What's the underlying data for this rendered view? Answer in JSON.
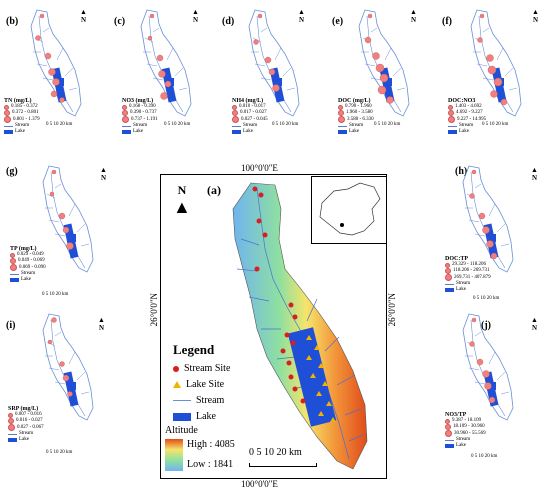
{
  "panels": [
    {
      "id": "b",
      "label": "(b)",
      "title": "TN (mg/L)",
      "classes": [
        "0.185 - 0.372",
        "0.372 - 0.801",
        "0.801 - 1.379"
      ]
    },
    {
      "id": "c",
      "label": "(c)",
      "title": "NO3 (mg/L)",
      "classes": [
        "0.168 - 0.390",
        "0.390 - 0.737",
        "0.737 - 1.191"
      ]
    },
    {
      "id": "d",
      "label": "(d)",
      "title": "NH4 (mg/L)",
      "classes": [
        "0.010 - 0.017",
        "0.017 - 0.027",
        "0.027 - 0.045"
      ]
    },
    {
      "id": "e",
      "label": "(e)",
      "title": "DOC (mg/L)",
      "classes": [
        "0.790 - 1.960",
        "1.960 - 3.580",
        "3.580 - 6.330"
      ]
    },
    {
      "id": "f",
      "label": "(f)",
      "title": "DOC:NO3",
      "classes": [
        "1.403 - 4.692",
        "4.692 - 9.227",
        "9.227 - 14.995"
      ]
    },
    {
      "id": "g",
      "label": "(g)",
      "title": "TP (mg/L)",
      "classes": [
        "0.029 - 0.049",
        "0.049 - 0.069",
        "0.069 - 0.090"
      ]
    },
    {
      "id": "h",
      "label": "(h)",
      "title": "DOC:TP",
      "classes": [
        "29.329 - 118.206",
        "118.206 - 269.731",
        "269.731 - 407.879"
      ]
    },
    {
      "id": "i",
      "label": "(i)",
      "title": "SRP (mg/L)",
      "classes": [
        "0.007 - 0.016",
        "0.016 - 0.027",
        "0.027 - 0.067"
      ]
    },
    {
      "id": "j",
      "label": "(j)",
      "title": "NO3/TP",
      "classes": [
        "9.387 - 18.109",
        "18.109 - 30.960",
        "30.960 - 55.569"
      ]
    }
  ],
  "small_legend": {
    "stream": "Stream",
    "lake": "Lake",
    "scale": "0  5 10      20 km",
    "north": "N"
  },
  "main_map": {
    "label": "(a)",
    "coord_top": "100°0'0\"E",
    "coord_bottom": "100°0'0\"E",
    "coord_left": "26°0'0\"N",
    "coord_right": "26°0'0\"N",
    "north": "N",
    "legend_title": "Legend",
    "stream_site": "Stream Site",
    "lake_site": "Lake Site",
    "stream": "Stream",
    "lake": "Lake",
    "altitude": "Altitude",
    "high": "High : 4085",
    "low": "Low : 1841",
    "scale_text": "0  5 10      20 km",
    "colors": {
      "stream_site": "#d81e1e",
      "lake_site": "#f0b400",
      "stream": "#6a8fd8",
      "lake": "#1f4fd6",
      "dem_high": "#e14b1a",
      "dem_low": "#6fb4f0"
    }
  }
}
